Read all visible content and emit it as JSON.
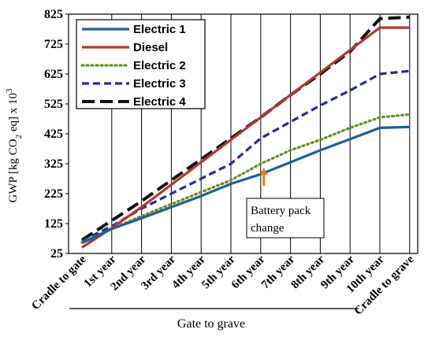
{
  "chart_data": {
    "type": "line",
    "categories": [
      "Cradle to gate",
      "1st year",
      "2nd year",
      "3rd year",
      "4th year",
      "5th year",
      "6th year",
      "7th year",
      "8th year",
      "9th year",
      "10th year",
      "Cradle to grave"
    ],
    "ylabel_parts": {
      "pre": "GWP [kg CO",
      "sub": "2",
      "mid": " eq] x 10",
      "sup": "3"
    },
    "ylim": [
      25,
      825
    ],
    "yticks": [
      25,
      125,
      225,
      325,
      425,
      525,
      625,
      725,
      825
    ],
    "grid": {
      "vertical": true,
      "horizontal": false
    },
    "legend_position": "top-left",
    "group_label": "Gate to grave",
    "annotation": {
      "text_line1": "Battery pack",
      "text_line2": "change",
      "category": "6th year",
      "value": 325,
      "arrow_color": "#e87722"
    },
    "series": [
      {
        "name": "Electric 1",
        "color": "#1f5f99",
        "dash": "solid",
        "values": [
          60,
          107,
          143,
          180,
          217,
          258,
          290,
          330,
          370,
          407,
          445,
          448
        ]
      },
      {
        "name": "Diesel",
        "color": "#b03a2e",
        "dash": "solid",
        "values": [
          45,
          110,
          180,
          255,
          330,
          405,
          480,
          555,
          630,
          705,
          780,
          780
        ]
      },
      {
        "name": "Electric 2",
        "color": "#6b8e23",
        "dash": "dotted",
        "values": [
          62,
          108,
          150,
          190,
          230,
          270,
          325,
          370,
          405,
          445,
          480,
          490
        ]
      },
      {
        "name": "Electric 3",
        "color": "#2a2a9a",
        "dash": "dashed",
        "values": [
          68,
          116,
          175,
          225,
          275,
          325,
          410,
          465,
          520,
          570,
          625,
          635
        ]
      },
      {
        "name": "Electric 4",
        "color": "#111111",
        "dash": "longdash",
        "values": [
          70,
          135,
          200,
          270,
          340,
          410,
          480,
          555,
          625,
          700,
          810,
          815
        ]
      }
    ]
  }
}
